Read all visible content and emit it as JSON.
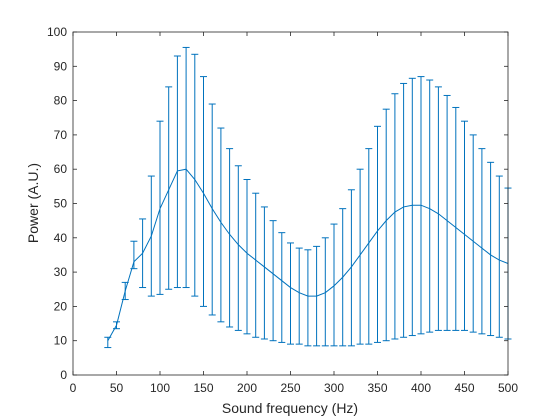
{
  "chart_data": {
    "type": "line",
    "xlabel": "Sound frequency (Hz)",
    "ylabel": "Power (A.U.)",
    "xlim": [
      0,
      500
    ],
    "ylim": [
      0,
      100
    ],
    "xticks": [
      0,
      50,
      100,
      150,
      200,
      250,
      300,
      350,
      400,
      450,
      500
    ],
    "yticks": [
      0,
      10,
      20,
      30,
      40,
      50,
      60,
      70,
      80,
      90,
      100
    ],
    "grid": false,
    "legend": "none",
    "colors": {
      "series": "#0072bd",
      "axes": "#262626"
    },
    "series": [
      {
        "x": [
          40,
          50,
          60,
          70,
          80,
          90,
          100,
          110,
          120,
          130,
          140,
          150,
          160,
          170,
          180,
          190,
          200,
          210,
          220,
          230,
          240,
          250,
          260,
          270,
          280,
          290,
          300,
          310,
          320,
          330,
          340,
          350,
          360,
          370,
          380,
          390,
          400,
          410,
          420,
          430,
          440,
          450,
          460,
          470,
          480,
          490,
          500
        ],
        "y": [
          10,
          14.5,
          24.5,
          33,
          35.5,
          40.5,
          48.5,
          54,
          59.5,
          60,
          57,
          53,
          48.5,
          44.5,
          41,
          38,
          35.5,
          33.5,
          31.5,
          29.5,
          27.5,
          25.5,
          24,
          23,
          23,
          24,
          26,
          28.5,
          31.5,
          35,
          38.5,
          42,
          45,
          47.5,
          49,
          49.5,
          49.5,
          48.5,
          47,
          45,
          43,
          41,
          39,
          37,
          35,
          33.5,
          32.5
        ],
        "err_low": [
          8,
          13.5,
          22,
          31,
          25.5,
          23,
          23.5,
          25,
          25.5,
          25.5,
          23,
          20,
          17.5,
          15.5,
          14,
          13,
          12,
          11,
          10.5,
          10,
          9.5,
          9,
          9,
          8.5,
          8.5,
          8.5,
          8.5,
          8.5,
          8.5,
          9,
          9,
          9.5,
          10,
          10.5,
          11,
          11.5,
          12,
          12.5,
          13,
          13,
          13,
          13,
          12.5,
          12,
          11.5,
          11,
          10.5
        ],
        "err_high": [
          11,
          15.5,
          27,
          39,
          45.5,
          58,
          74,
          84,
          93,
          95.5,
          93.5,
          87,
          79,
          72,
          66,
          61,
          57,
          53,
          49,
          45,
          41.5,
          38.5,
          37,
          36.5,
          37.5,
          40,
          44,
          48.5,
          54,
          60,
          66,
          72.5,
          77.5,
          82,
          85,
          86.5,
          87,
          86,
          84,
          81.5,
          78,
          74,
          70,
          66,
          62,
          58,
          54.5
        ]
      }
    ]
  }
}
